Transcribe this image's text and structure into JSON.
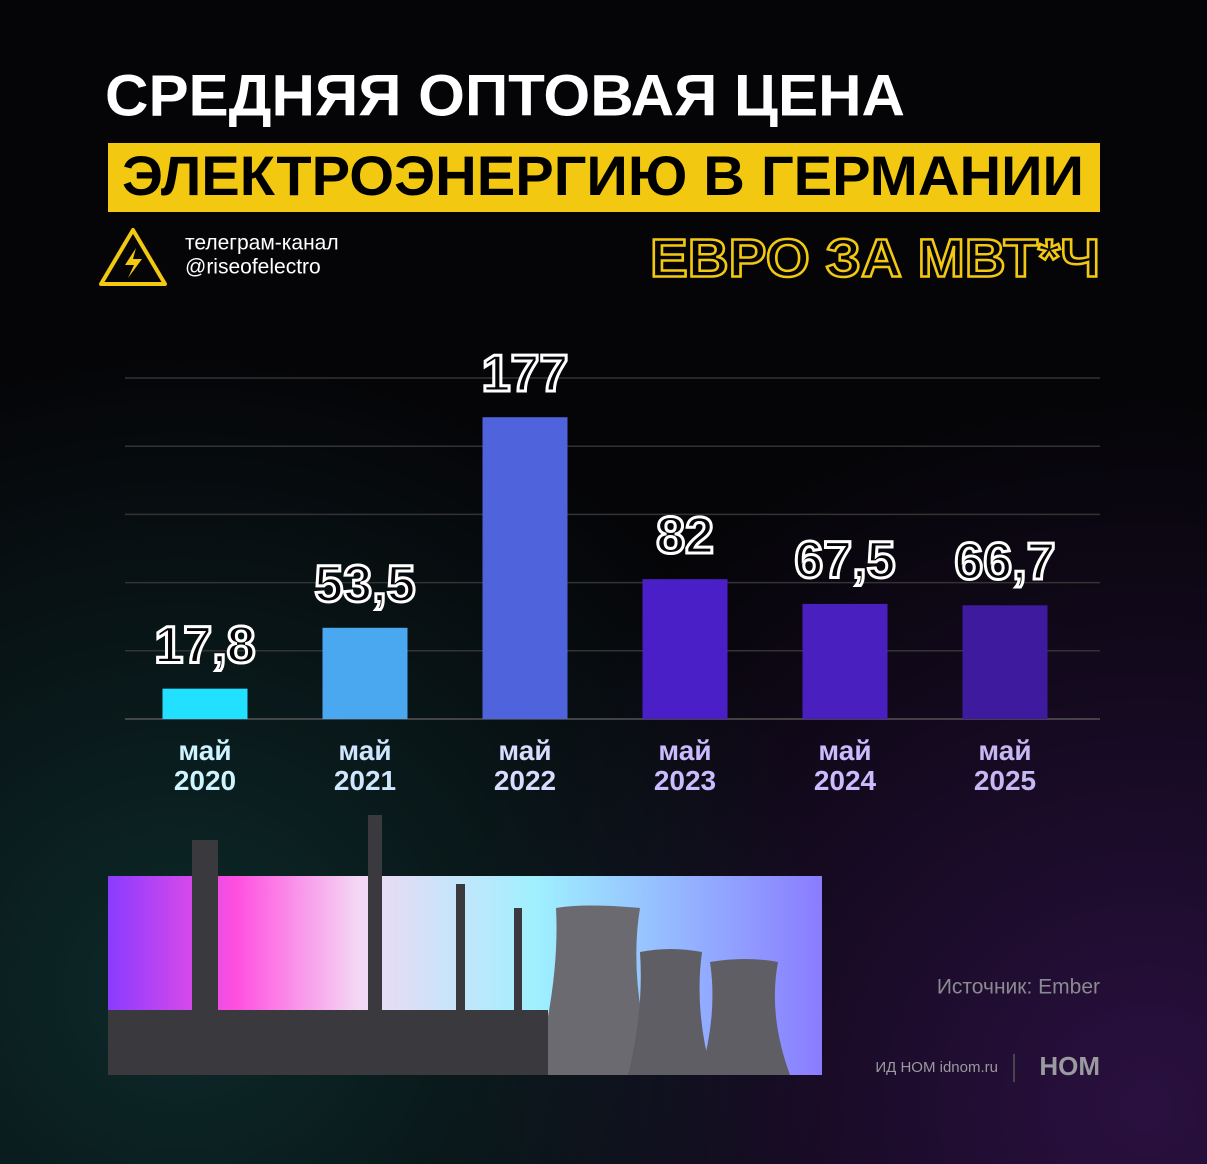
{
  "chart_data": {
    "type": "bar",
    "title": "СРЕДНЯЯ ОПТОВАЯ ЦЕНА",
    "subtitle": "ЭЛЕКТРОЭНЕРГИЮ В ГЕРМАНИИ",
    "channel_label": "телеграм-канал",
    "channel_handle": "@riseofelectro",
    "unit": "ЕВРО ЗА МВТ*Ч",
    "categories": [
      "май 2020",
      "май 2021",
      "май 2022",
      "май 2023",
      "май 2024",
      "май 2025"
    ],
    "values": [
      17.8,
      53.5,
      177,
      82,
      67.5,
      66.7
    ],
    "value_labels": [
      "17,8",
      "53,5",
      "177",
      "82",
      "67,5",
      "66,7"
    ],
    "colors": [
      "#22e0ff",
      "#4aa8f0",
      "#4f63dd",
      "#4a1fc8",
      "#4a1fc0",
      "#3d1a9e"
    ],
    "ylim": [
      0,
      200
    ],
    "yticks": [
      0,
      40,
      80,
      120,
      160,
      200
    ],
    "grid": true,
    "source": "Источник: Ember",
    "publisher": "ИД НОМ idnom.ru",
    "brand": "НОМ"
  }
}
